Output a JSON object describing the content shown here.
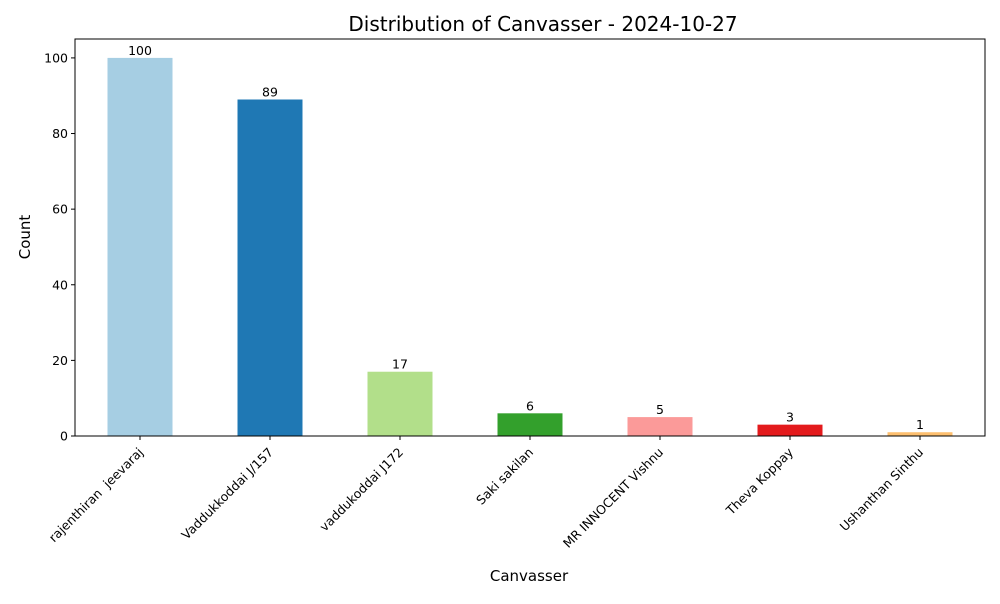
{
  "chart_data": {
    "type": "bar",
    "title": "Distribution of Canvasser - 2024-10-27",
    "xlabel": "Canvasser",
    "ylabel": "Count",
    "ylim": [
      0,
      105
    ],
    "yticks": [
      0,
      20,
      40,
      60,
      80,
      100
    ],
    "categories": [
      "rajenthiran  jeevaraj",
      "Vaddukkoddai J/157",
      "vaddukoddai J172",
      "Saki sakilan",
      "MR INNOCENT Vishnu",
      "Theva Koppay",
      "Ushanthan Sinthu"
    ],
    "values": [
      100,
      89,
      17,
      6,
      5,
      3,
      1
    ],
    "colors": [
      "#a6cee3",
      "#1f78b4",
      "#b2df8a",
      "#33a02c",
      "#fb9a99",
      "#e31a1c",
      "#fdbf6f"
    ],
    "grid": false,
    "legend": "none",
    "data_labels": true
  }
}
